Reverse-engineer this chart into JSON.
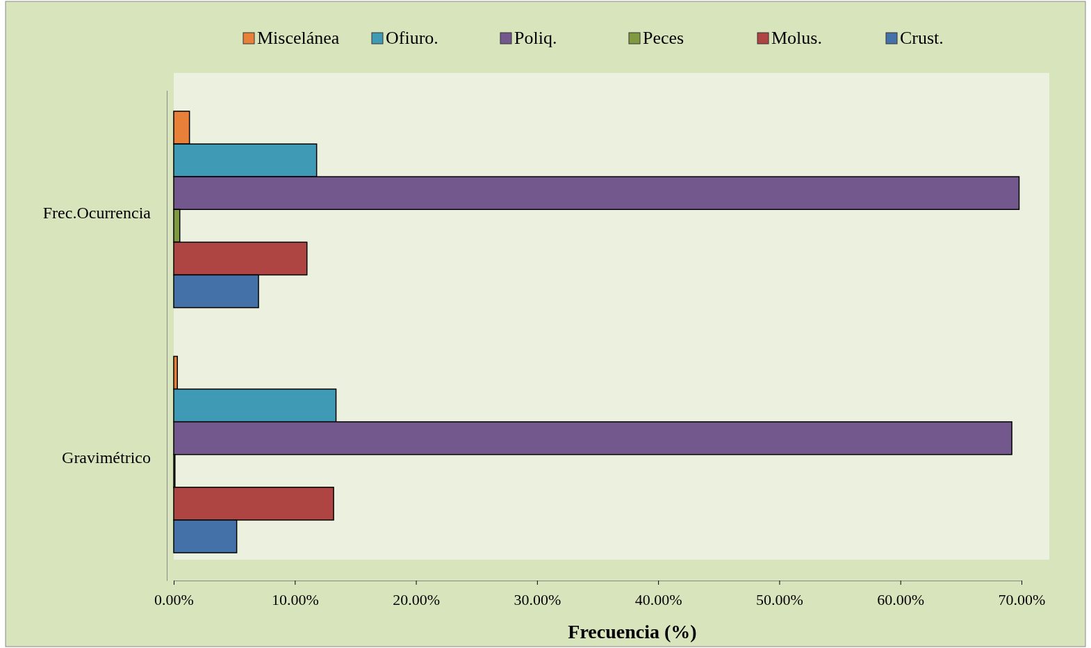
{
  "chart_data": {
    "type": "bar",
    "orientation": "horizontal",
    "xlabel": "Frecuencia (%)",
    "categories": [
      "Frec.Ocurrencia",
      "Gravimétrico"
    ],
    "series": [
      {
        "name": "Miscelánea",
        "color": "#e8803a",
        "values": [
          1.3,
          0.3
        ]
      },
      {
        "name": "Ofiuro.",
        "color": "#3e9ab5",
        "values": [
          11.8,
          13.4
        ]
      },
      {
        "name": "Poliq.",
        "color": "#73588e",
        "values": [
          69.8,
          69.2
        ]
      },
      {
        "name": "Peces",
        "color": "#7f9a41",
        "values": [
          0.5,
          0.1
        ]
      },
      {
        "name": "Molus.",
        "color": "#ae4543",
        "values": [
          11,
          13.2
        ]
      },
      {
        "name": "Crust.",
        "color": "#4471a8",
        "values": [
          7,
          5.2
        ]
      }
    ],
    "xlim": [
      0,
      70
    ],
    "xticks": [
      {
        "value": 0,
        "label": "0.00%"
      },
      {
        "value": 10,
        "label": "10.00%"
      },
      {
        "value": 20,
        "label": "20.00%"
      },
      {
        "value": 30,
        "label": "30.00%"
      },
      {
        "value": 40,
        "label": "40.00%"
      },
      {
        "value": 50,
        "label": "50.00%"
      },
      {
        "value": 60,
        "label": "60.00%"
      },
      {
        "value": 70,
        "label": "70.00%"
      }
    ],
    "grid": false,
    "legend": "top"
  }
}
